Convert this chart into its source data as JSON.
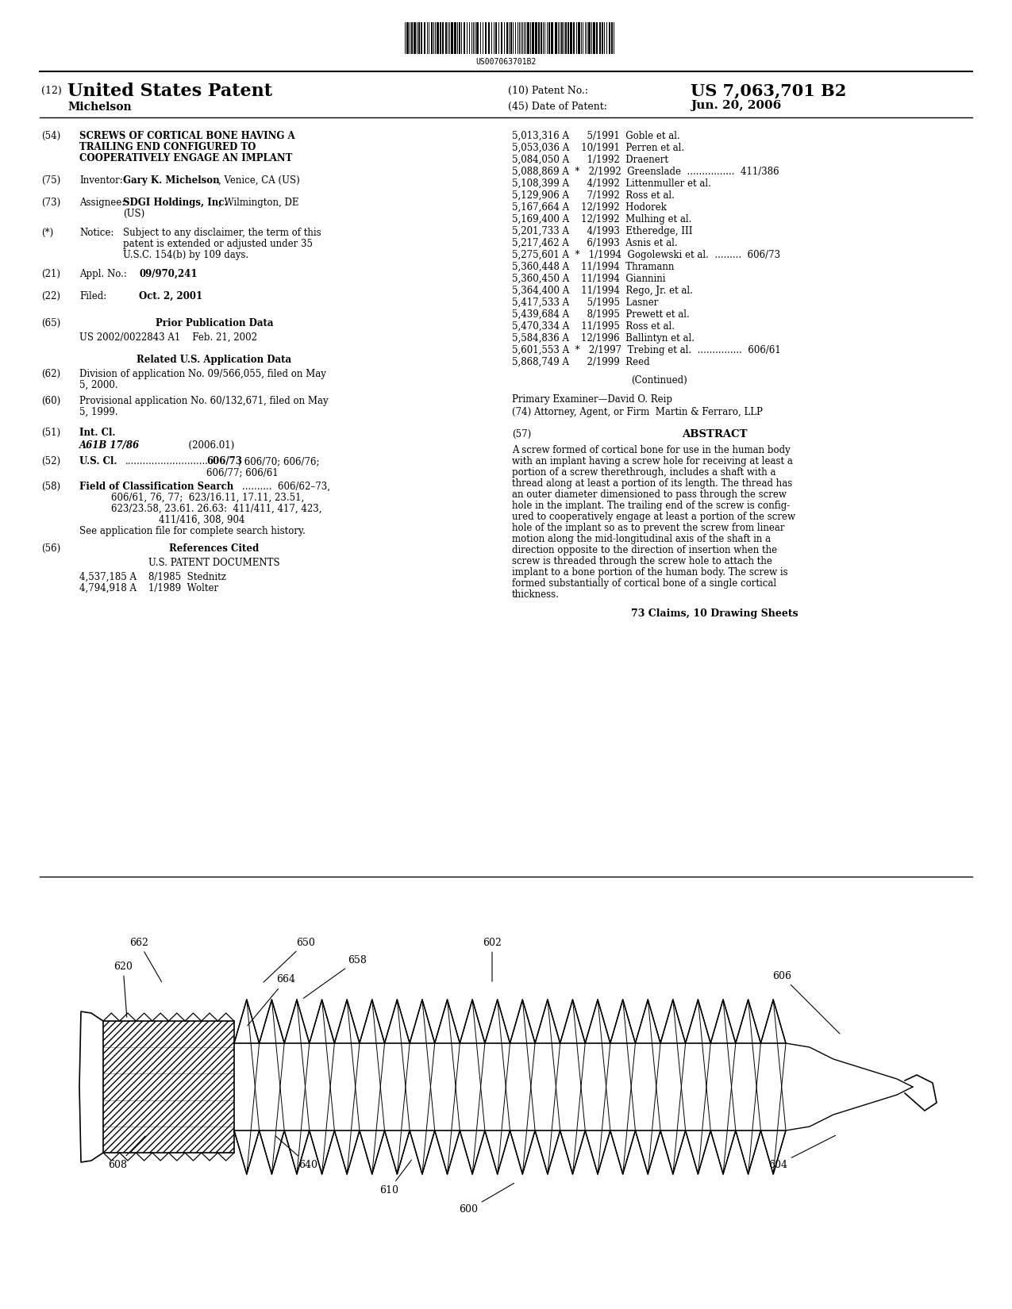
{
  "background_color": "#ffffff",
  "barcode_text": "US007063701B2",
  "patent_number": "US 7,063,701 B2",
  "patent_date": "Jun. 20, 2006",
  "patent_type": "United States Patent",
  "inventor_name": "Michelson",
  "references_right": [
    "5,013,316 A      5/1991  Goble et al.",
    "5,053,036 A    10/1991  Perren et al.",
    "5,084,050 A      1/1992  Draenert",
    "5,088,869 A  *   2/1992  Greenslade  ................  411/386",
    "5,108,399 A      4/1992  Littenmuller et al.",
    "5,129,906 A      7/1992  Ross et al.",
    "5,167,664 A    12/1992  Hodorek",
    "5,169,400 A    12/1992  Mulhing et al.",
    "5,201,733 A      4/1993  Etheredge, III",
    "5,217,462 A      6/1993  Asnis et al.",
    "5,275,601 A  *   1/1994  Gogolewski et al.  .........  606/73",
    "5,360,448 A    11/1994  Thramann",
    "5,360,450 A    11/1994  Giannini",
    "5,364,400 A    11/1994  Rego, Jr. et al.",
    "5,417,533 A      5/1995  Lasner",
    "5,439,684 A      8/1995  Prewett et al.",
    "5,470,334 A    11/1995  Ross et al.",
    "5,584,836 A    12/1996  Ballintyn et al.",
    "5,601,553 A  *   2/1997  Trebing et al.  ...............  606/61",
    "5,868,749 A      2/1999  Reed"
  ],
  "abstract_text": "A screw formed of cortical bone for use in the human body\nwith an implant having a screw hole for receiving at least a\nportion of a screw therethrough, includes a shaft with a\nthread along at least a portion of its length. The thread has\nan outer diameter dimensioned to pass through the screw\nhole in the implant. The trailing end of the screw is config-\nured to cooperatively engage at least a portion of the screw\nhole of the implant so as to prevent the screw from linear\nmotion along the mid-longitudinal axis of the shaft in a\ndirection opposite to the direction of insertion when the\nscrew is threaded through the screw hole to attach the\nimplant to a bone portion of the human body. The screw is\nformed substantially of cortical bone of a single cortical\nthickness."
}
